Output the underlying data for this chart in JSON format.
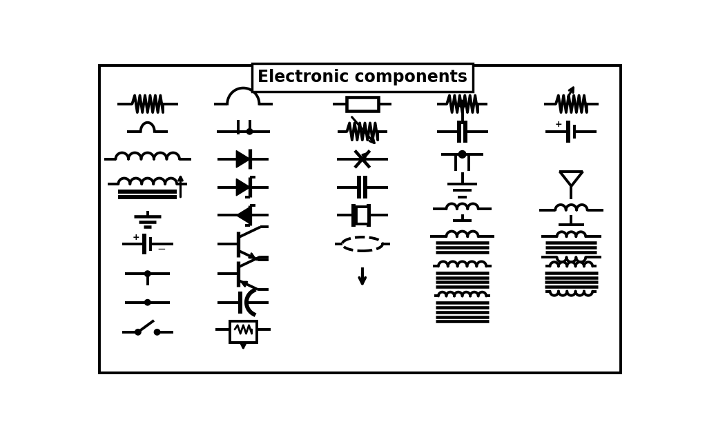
{
  "title": "Electronic components",
  "bg_color": "#ffffff",
  "line_color": "#000000",
  "lw": 2.8
}
